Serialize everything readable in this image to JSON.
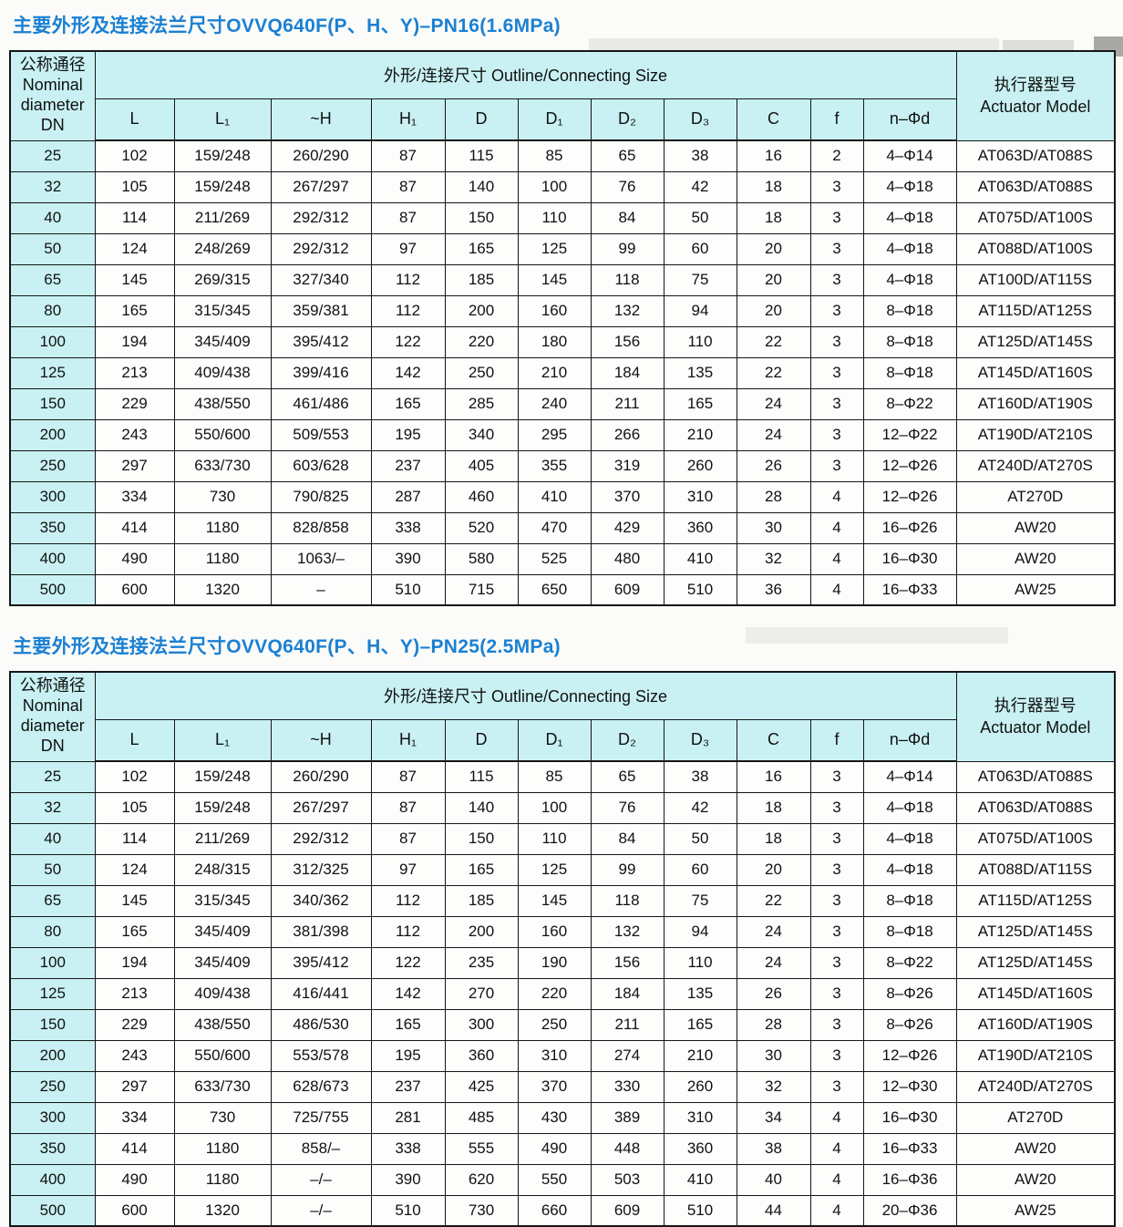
{
  "colors": {
    "title_blue": "#1b80d2",
    "header_cyan": "#c9f1f3",
    "border_dark": "#161616",
    "cell_bg": "#fdfdfc",
    "page_bg": "#fbfbf9"
  },
  "tables": [
    {
      "title": "主要外形及连接法兰尺寸OVVQ640F(P、H、Y)–PN16(1.6MPa)",
      "dn_header": [
        "公称通径",
        "Nominal",
        "diameter",
        "DN"
      ],
      "group_header": "外形/连接尺寸 Outline/Connecting Size",
      "actuator_header": [
        "执行器型号",
        "Actuator Model"
      ],
      "columns": [
        "L",
        "L₁",
        "~H",
        "H₁",
        "D",
        "D₁",
        "D₂",
        "D₃",
        "C",
        "f",
        "n–Φd"
      ],
      "rows": [
        [
          "25",
          "102",
          "159/248",
          "260/290",
          "87",
          "115",
          "85",
          "65",
          "38",
          "16",
          "2",
          "4–Φ14",
          "AT063D/AT088S"
        ],
        [
          "32",
          "105",
          "159/248",
          "267/297",
          "87",
          "140",
          "100",
          "76",
          "42",
          "18",
          "3",
          "4–Φ18",
          "AT063D/AT088S"
        ],
        [
          "40",
          "114",
          "211/269",
          "292/312",
          "87",
          "150",
          "110",
          "84",
          "50",
          "18",
          "3",
          "4–Φ18",
          "AT075D/AT100S"
        ],
        [
          "50",
          "124",
          "248/269",
          "292/312",
          "97",
          "165",
          "125",
          "99",
          "60",
          "20",
          "3",
          "4–Φ18",
          "AT088D/AT100S"
        ],
        [
          "65",
          "145",
          "269/315",
          "327/340",
          "112",
          "185",
          "145",
          "118",
          "75",
          "20",
          "3",
          "4–Φ18",
          "AT100D/AT115S"
        ],
        [
          "80",
          "165",
          "315/345",
          "359/381",
          "112",
          "200",
          "160",
          "132",
          "94",
          "20",
          "3",
          "8–Φ18",
          "AT115D/AT125S"
        ],
        [
          "100",
          "194",
          "345/409",
          "395/412",
          "122",
          "220",
          "180",
          "156",
          "110",
          "22",
          "3",
          "8–Φ18",
          "AT125D/AT145S"
        ],
        [
          "125",
          "213",
          "409/438",
          "399/416",
          "142",
          "250",
          "210",
          "184",
          "135",
          "22",
          "3",
          "8–Φ18",
          "AT145D/AT160S"
        ],
        [
          "150",
          "229",
          "438/550",
          "461/486",
          "165",
          "285",
          "240",
          "211",
          "165",
          "24",
          "3",
          "8–Φ22",
          "AT160D/AT190S"
        ],
        [
          "200",
          "243",
          "550/600",
          "509/553",
          "195",
          "340",
          "295",
          "266",
          "210",
          "24",
          "3",
          "12–Φ22",
          "AT190D/AT210S"
        ],
        [
          "250",
          "297",
          "633/730",
          "603/628",
          "237",
          "405",
          "355",
          "319",
          "260",
          "26",
          "3",
          "12–Φ26",
          "AT240D/AT270S"
        ],
        [
          "300",
          "334",
          "730",
          "790/825",
          "287",
          "460",
          "410",
          "370",
          "310",
          "28",
          "4",
          "12–Φ26",
          "AT270D"
        ],
        [
          "350",
          "414",
          "1180",
          "828/858",
          "338",
          "520",
          "470",
          "429",
          "360",
          "30",
          "4",
          "16–Φ26",
          "AW20"
        ],
        [
          "400",
          "490",
          "1180",
          "1063/–",
          "390",
          "580",
          "525",
          "480",
          "410",
          "32",
          "4",
          "16–Φ30",
          "AW20"
        ],
        [
          "500",
          "600",
          "1320",
          "–",
          "510",
          "715",
          "650",
          "609",
          "510",
          "36",
          "4",
          "16–Φ33",
          "AW25"
        ]
      ]
    },
    {
      "title": "主要外形及连接法兰尺寸OVVQ640F(P、H、Y)–PN25(2.5MPa)",
      "dn_header": [
        "公称通径",
        "Nominal",
        "diameter",
        "DN"
      ],
      "group_header": "外形/连接尺寸 Outline/Connecting Size",
      "actuator_header": [
        "执行器型号",
        "Actuator Model"
      ],
      "columns": [
        "L",
        "L₁",
        "~H",
        "H₁",
        "D",
        "D₁",
        "D₂",
        "D₃",
        "C",
        "f",
        "n–Φd"
      ],
      "rows": [
        [
          "25",
          "102",
          "159/248",
          "260/290",
          "87",
          "115",
          "85",
          "65",
          "38",
          "16",
          "3",
          "4–Φ14",
          "AT063D/AT088S"
        ],
        [
          "32",
          "105",
          "159/248",
          "267/297",
          "87",
          "140",
          "100",
          "76",
          "42",
          "18",
          "3",
          "4–Φ18",
          "AT063D/AT088S"
        ],
        [
          "40",
          "114",
          "211/269",
          "292/312",
          "87",
          "150",
          "110",
          "84",
          "50",
          "18",
          "3",
          "4–Φ18",
          "AT075D/AT100S"
        ],
        [
          "50",
          "124",
          "248/315",
          "312/325",
          "97",
          "165",
          "125",
          "99",
          "60",
          "20",
          "3",
          "4–Φ18",
          "AT088D/AT115S"
        ],
        [
          "65",
          "145",
          "315/345",
          "340/362",
          "112",
          "185",
          "145",
          "118",
          "75",
          "22",
          "3",
          "8–Φ18",
          "AT115D/AT125S"
        ],
        [
          "80",
          "165",
          "345/409",
          "381/398",
          "112",
          "200",
          "160",
          "132",
          "94",
          "24",
          "3",
          "8–Φ18",
          "AT125D/AT145S"
        ],
        [
          "100",
          "194",
          "345/409",
          "395/412",
          "122",
          "235",
          "190",
          "156",
          "110",
          "24",
          "3",
          "8–Φ22",
          "AT125D/AT145S"
        ],
        [
          "125",
          "213",
          "409/438",
          "416/441",
          "142",
          "270",
          "220",
          "184",
          "135",
          "26",
          "3",
          "8–Φ26",
          "AT145D/AT160S"
        ],
        [
          "150",
          "229",
          "438/550",
          "486/530",
          "165",
          "300",
          "250",
          "211",
          "165",
          "28",
          "3",
          "8–Φ26",
          "AT160D/AT190S"
        ],
        [
          "200",
          "243",
          "550/600",
          "553/578",
          "195",
          "360",
          "310",
          "274",
          "210",
          "30",
          "3",
          "12–Φ26",
          "AT190D/AT210S"
        ],
        [
          "250",
          "297",
          "633/730",
          "628/673",
          "237",
          "425",
          "370",
          "330",
          "260",
          "32",
          "3",
          "12–Φ30",
          "AT240D/AT270S"
        ],
        [
          "300",
          "334",
          "730",
          "725/755",
          "281",
          "485",
          "430",
          "389",
          "310",
          "34",
          "4",
          "16–Φ30",
          "AT270D"
        ],
        [
          "350",
          "414",
          "1180",
          "858/–",
          "338",
          "555",
          "490",
          "448",
          "360",
          "38",
          "4",
          "16–Φ33",
          "AW20"
        ],
        [
          "400",
          "490",
          "1180",
          "–/–",
          "390",
          "620",
          "550",
          "503",
          "410",
          "40",
          "4",
          "16–Φ36",
          "AW20"
        ],
        [
          "500",
          "600",
          "1320",
          "–/–",
          "510",
          "730",
          "660",
          "609",
          "510",
          "44",
          "4",
          "20–Φ36",
          "AW25"
        ]
      ]
    }
  ]
}
